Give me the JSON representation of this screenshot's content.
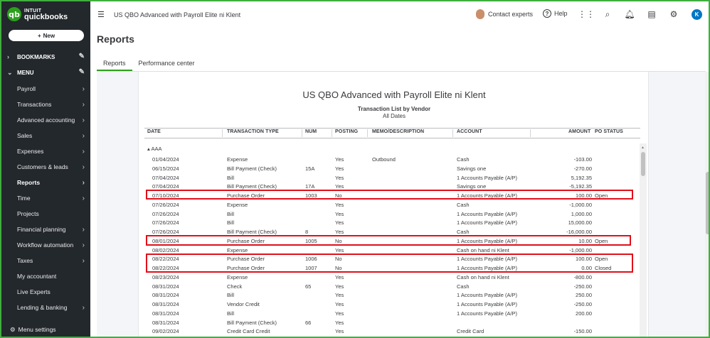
{
  "brand": {
    "line1": "INTUIT",
    "line2": "quickbooks",
    "mark": "qb"
  },
  "sidebar": {
    "new_label": "New",
    "bookmarks_label": "BOOKMARKS",
    "menu_label": "MENU",
    "items": [
      {
        "label": "Payroll",
        "arrow": true
      },
      {
        "label": "Transactions",
        "arrow": true
      },
      {
        "label": "Advanced accounting",
        "arrow": true
      },
      {
        "label": "Sales",
        "arrow": true
      },
      {
        "label": "Expenses",
        "arrow": true
      },
      {
        "label": "Customers & leads",
        "arrow": true
      },
      {
        "label": "Reports",
        "arrow": true,
        "active": true
      },
      {
        "label": "Time",
        "arrow": true
      },
      {
        "label": "Projects",
        "arrow": false
      },
      {
        "label": "Financial planning",
        "arrow": true
      },
      {
        "label": "Workflow automation",
        "arrow": true
      },
      {
        "label": "Taxes",
        "arrow": true
      },
      {
        "label": "My accountant",
        "arrow": false
      },
      {
        "label": "Live Experts",
        "arrow": false
      },
      {
        "label": "Lending & banking",
        "arrow": true
      }
    ],
    "footer_label": "Menu settings"
  },
  "header": {
    "company_name": "US QBO Advanced with Payroll Elite ni Klent",
    "contact_label": "Contact experts",
    "help_label": "Help",
    "user_initial": "K"
  },
  "page": {
    "title": "Reports",
    "tabs": [
      "Reports",
      "Performance center"
    ]
  },
  "report": {
    "company": "US QBO Advanced with Payroll Elite ni Klent",
    "title": "Transaction List by Vendor",
    "subtitle": "All Dates",
    "columns": {
      "date": "DATE",
      "type": "TRANSACTION TYPE",
      "num": "NUM",
      "posting": "POSTING",
      "memo": "MEMO/DESCRIPTION",
      "account": "ACCOUNT",
      "amount": "AMOUNT",
      "po_status": "PO STATUS"
    },
    "group": "AAA",
    "rows": [
      {
        "date": "01/04/2024",
        "type": "Expense",
        "num": "",
        "posting": "Yes",
        "memo": "Outbound",
        "account": "Cash",
        "amount": "-103.00",
        "po": ""
      },
      {
        "date": "06/15/2024",
        "type": "Bill Payment (Check)",
        "num": "15A",
        "posting": "Yes",
        "memo": "",
        "account": "Savings one",
        "amount": "-270.00",
        "po": ""
      },
      {
        "date": "07/04/2024",
        "type": "Bill",
        "num": "",
        "posting": "Yes",
        "memo": "",
        "account": "1 Accounts Payable (A/P)",
        "amount": "5,192.35",
        "po": ""
      },
      {
        "date": "07/04/2024",
        "type": "Bill Payment (Check)",
        "num": "17A",
        "posting": "Yes",
        "memo": "",
        "account": "Savings one",
        "amount": "-5,192.35",
        "po": ""
      },
      {
        "date": "07/10/2024",
        "type": "Purchase Order",
        "num": "1003",
        "posting": "No",
        "memo": "",
        "account": "1 Accounts Payable (A/P)",
        "amount": "100.00",
        "po": "Open"
      },
      {
        "date": "07/26/2024",
        "type": "Expense",
        "num": "",
        "posting": "Yes",
        "memo": "",
        "account": "Cash",
        "amount": "-1,000.00",
        "po": ""
      },
      {
        "date": "07/26/2024",
        "type": "Bill",
        "num": "",
        "posting": "Yes",
        "memo": "",
        "account": "1 Accounts Payable (A/P)",
        "amount": "1,000.00",
        "po": ""
      },
      {
        "date": "07/26/2024",
        "type": "Bill",
        "num": "",
        "posting": "Yes",
        "memo": "",
        "account": "1 Accounts Payable (A/P)",
        "amount": "15,000.00",
        "po": ""
      },
      {
        "date": "07/26/2024",
        "type": "Bill Payment (Check)",
        "num": "8",
        "posting": "Yes",
        "memo": "",
        "account": "Cash",
        "amount": "-16,000.00",
        "po": ""
      },
      {
        "date": "08/01/2024",
        "type": "Purchase Order",
        "num": "1005",
        "posting": "No",
        "memo": "",
        "account": "1 Accounts Payable (A/P)",
        "amount": "10.00",
        "po": "Open"
      },
      {
        "date": "08/02/2024",
        "type": "Expense",
        "num": "",
        "posting": "Yes",
        "memo": "",
        "account": "Cash on hand ni Klent",
        "amount": "-1,000.00",
        "po": ""
      },
      {
        "date": "08/22/2024",
        "type": "Purchase Order",
        "num": "1006",
        "posting": "No",
        "memo": "",
        "account": "1 Accounts Payable (A/P)",
        "amount": "100.00",
        "po": "Open"
      },
      {
        "date": "08/22/2024",
        "type": "Purchase Order",
        "num": "1007",
        "posting": "No",
        "memo": "",
        "account": "1 Accounts Payable (A/P)",
        "amount": "0.00",
        "po": "Closed"
      },
      {
        "date": "08/23/2024",
        "type": "Expense",
        "num": "",
        "posting": "Yes",
        "memo": "",
        "account": "Cash on hand ni Klent",
        "amount": "-800.00",
        "po": ""
      },
      {
        "date": "08/31/2024",
        "type": "Check",
        "num": "65",
        "posting": "Yes",
        "memo": "",
        "account": "Cash",
        "amount": "-250.00",
        "po": ""
      },
      {
        "date": "08/31/2024",
        "type": "Bill",
        "num": "",
        "posting": "Yes",
        "memo": "",
        "account": "1 Accounts Payable (A/P)",
        "amount": "250.00",
        "po": ""
      },
      {
        "date": "08/31/2024",
        "type": "Vendor Credit",
        "num": "",
        "posting": "Yes",
        "memo": "",
        "account": "1 Accounts Payable (A/P)",
        "amount": "-250.00",
        "po": ""
      },
      {
        "date": "08/31/2024",
        "type": "Bill",
        "num": "",
        "posting": "Yes",
        "memo": "",
        "account": "1 Accounts Payable (A/P)",
        "amount": "200.00",
        "po": ""
      },
      {
        "date": "08/31/2024",
        "type": "Bill Payment (Check)",
        "num": "66",
        "posting": "Yes",
        "memo": "",
        "account": "",
        "amount": "",
        "po": ""
      },
      {
        "date": "09/02/2024",
        "type": "Credit Card Credit",
        "num": "",
        "posting": "Yes",
        "memo": "",
        "account": "Credit Card",
        "amount": "-150.00",
        "po": ""
      }
    ]
  },
  "colors": {
    "highlight": "#e0101a",
    "brand_green": "#2ca01c",
    "sidebar_bg": "#23282d"
  }
}
